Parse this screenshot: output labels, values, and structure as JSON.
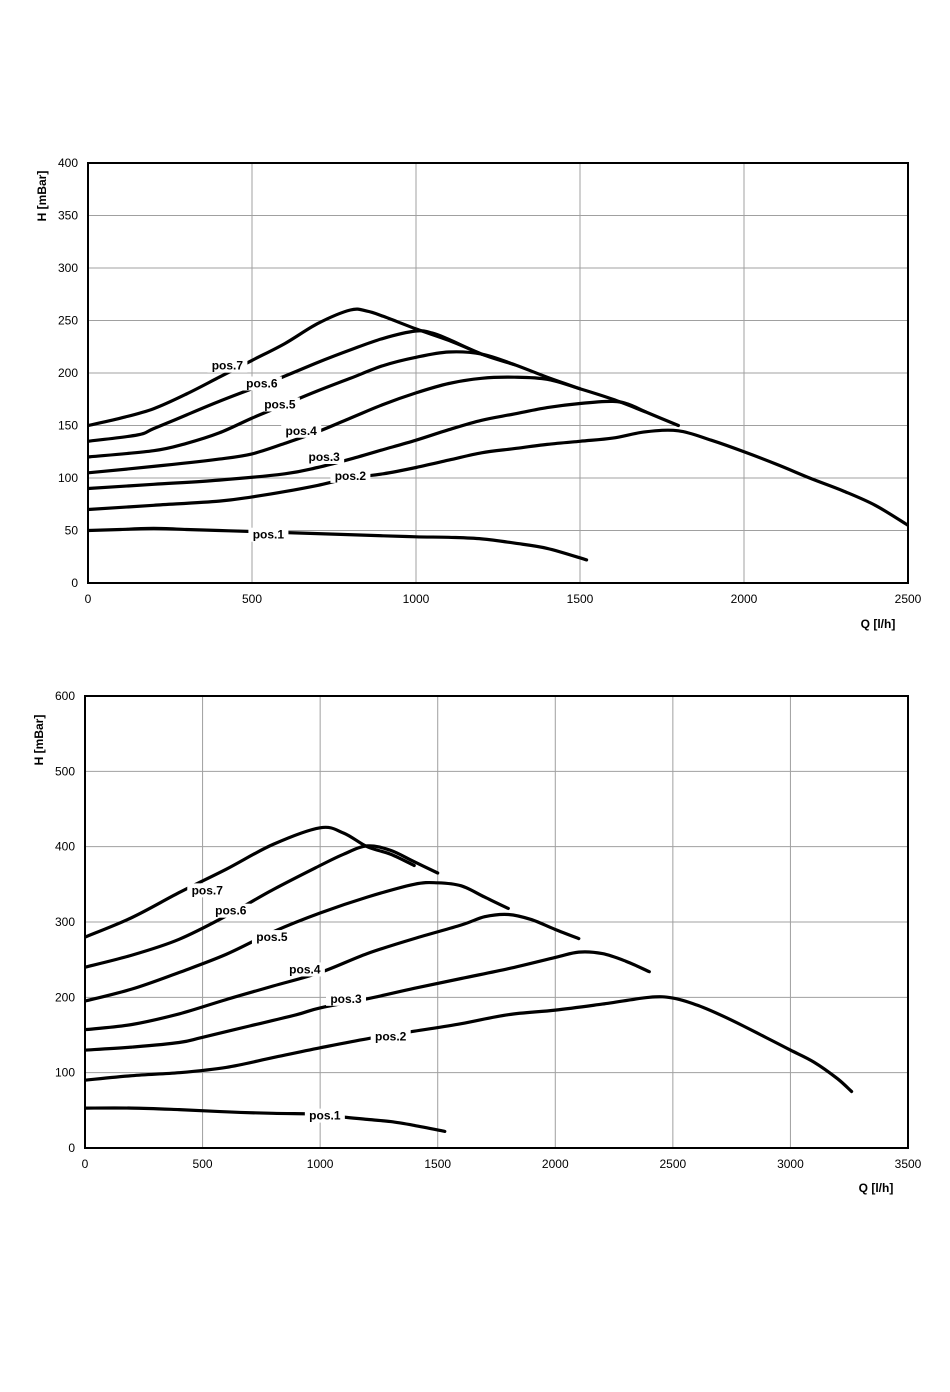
{
  "chart_data": [
    {
      "type": "line",
      "xlabel": "Q [l/h]",
      "ylabel": "H [mBar]",
      "xlim": [
        0,
        2500
      ],
      "ylim": [
        0,
        400
      ],
      "xticks": [
        "0",
        "500",
        "1000",
        "1500",
        "2000",
        "2500"
      ],
      "yticks": [
        "0",
        "50",
        "100",
        "150",
        "200",
        "250",
        "300",
        "350",
        "400"
      ],
      "grid": true,
      "series": [
        {
          "name": "pos.1",
          "label_at": [
            550,
            46
          ],
          "points": [
            [
              0,
              50
            ],
            [
              100,
              51
            ],
            [
              200,
              52
            ],
            [
              300,
              51
            ],
            [
              400,
              50
            ],
            [
              500,
              49
            ],
            [
              700,
              47
            ],
            [
              900,
              45
            ],
            [
              1000,
              44
            ],
            [
              1100,
              43.5
            ],
            [
              1200,
              42
            ],
            [
              1300,
              38
            ],
            [
              1400,
              33
            ],
            [
              1520,
              22
            ]
          ]
        },
        {
          "name": "pos.2",
          "label_at": [
            800,
            102
          ],
          "points": [
            [
              0,
              70
            ],
            [
              200,
              74
            ],
            [
              400,
              78
            ],
            [
              500,
              82
            ],
            [
              600,
              87
            ],
            [
              700,
              93
            ],
            [
              800,
              100
            ],
            [
              900,
              104
            ],
            [
              1000,
              110
            ],
            [
              1100,
              117
            ],
            [
              1200,
              124
            ],
            [
              1300,
              128
            ],
            [
              1400,
              132
            ],
            [
              1500,
              135
            ],
            [
              1600,
              138
            ],
            [
              1700,
              144
            ],
            [
              1800,
              145
            ],
            [
              1900,
              136
            ],
            [
              2000,
              125
            ],
            [
              2100,
              113
            ],
            [
              2200,
              100
            ],
            [
              2300,
              88
            ],
            [
              2400,
              74
            ],
            [
              2500,
              55
            ]
          ]
        },
        {
          "name": "pos.3",
          "label_at": [
            720,
            120
          ],
          "points": [
            [
              0,
              90
            ],
            [
              200,
              94
            ],
            [
              400,
              98
            ],
            [
              600,
              104
            ],
            [
              700,
              110
            ],
            [
              800,
              118
            ],
            [
              900,
              127
            ],
            [
              1000,
              136
            ],
            [
              1100,
              146
            ],
            [
              1200,
              155
            ],
            [
              1300,
              161
            ],
            [
              1400,
              167
            ],
            [
              1500,
              171
            ],
            [
              1600,
              173
            ],
            [
              1650,
              170
            ],
            [
              1700,
              163
            ],
            [
              1800,
              150
            ]
          ]
        },
        {
          "name": "pos.4",
          "label_at": [
            650,
            145
          ],
          "points": [
            [
              0,
              105
            ],
            [
              200,
              111
            ],
            [
              400,
              118
            ],
            [
              500,
              123
            ],
            [
              600,
              133
            ],
            [
              700,
              144
            ],
            [
              800,
              157
            ],
            [
              900,
              170
            ],
            [
              1000,
              181
            ],
            [
              1100,
              190
            ],
            [
              1200,
              195
            ],
            [
              1300,
              196
            ],
            [
              1400,
              194
            ],
            [
              1500,
              185
            ],
            [
              1600,
              175
            ],
            [
              1700,
              163
            ]
          ]
        },
        {
          "name": "pos.5",
          "label_at": [
            585,
            170
          ],
          "points": [
            [
              0,
              120
            ],
            [
              200,
              126
            ],
            [
              300,
              133
            ],
            [
              400,
              143
            ],
            [
              500,
              157
            ],
            [
              600,
              170
            ],
            [
              700,
              183
            ],
            [
              800,
              195
            ],
            [
              900,
              207
            ],
            [
              1000,
              215
            ],
            [
              1100,
              220
            ],
            [
              1200,
              218
            ],
            [
              1300,
              208
            ],
            [
              1400,
              196
            ],
            [
              1500,
              185
            ]
          ]
        },
        {
          "name": "pos.6",
          "label_at": [
            530,
            190
          ],
          "points": [
            [
              0,
              135
            ],
            [
              150,
              141
            ],
            [
              200,
              147
            ],
            [
              300,
              160
            ],
            [
              400,
              173
            ],
            [
              500,
              185
            ],
            [
              600,
              197
            ],
            [
              700,
              210
            ],
            [
              800,
              222
            ],
            [
              900,
              233
            ],
            [
              1000,
              240
            ],
            [
              1050,
              238
            ],
            [
              1100,
              232
            ],
            [
              1200,
              218
            ],
            [
              1300,
              208
            ]
          ]
        },
        {
          "name": "pos.7",
          "label_at": [
            425,
            207
          ],
          "points": [
            [
              0,
              150
            ],
            [
              100,
              157
            ],
            [
              200,
              166
            ],
            [
              300,
              180
            ],
            [
              400,
              196
            ],
            [
              500,
              212
            ],
            [
              600,
              228
            ],
            [
              700,
              247
            ],
            [
              800,
              260
            ],
            [
              850,
              259
            ],
            [
              900,
              254
            ],
            [
              1000,
              242
            ],
            [
              1100,
              231
            ],
            [
              1200,
              218
            ]
          ]
        }
      ]
    },
    {
      "type": "line",
      "xlabel": "Q [l/h]",
      "ylabel": "H [mBar]",
      "xlim": [
        0,
        3500
      ],
      "ylim": [
        0,
        600
      ],
      "xticks": [
        "0",
        "500",
        "1000",
        "1500",
        "2000",
        "2500",
        "3000",
        "3500"
      ],
      "yticks": [
        "0",
        "100",
        "200",
        "300",
        "400",
        "500",
        "600"
      ],
      "grid": true,
      "series": [
        {
          "name": "pos.1",
          "label_at": [
            1020,
            43
          ],
          "points": [
            [
              0,
              53
            ],
            [
              200,
              53
            ],
            [
              400,
              51
            ],
            [
              600,
              48
            ],
            [
              800,
              46
            ],
            [
              1000,
              45
            ],
            [
              1100,
              41
            ],
            [
              1200,
              38
            ],
            [
              1300,
              35
            ],
            [
              1400,
              30
            ],
            [
              1530,
              22
            ]
          ]
        },
        {
          "name": "pos.2",
          "label_at": [
            1300,
            148
          ],
          "points": [
            [
              0,
              90
            ],
            [
              200,
              96
            ],
            [
              400,
              100
            ],
            [
              600,
              107
            ],
            [
              800,
              120
            ],
            [
              1000,
              133
            ],
            [
              1200,
              145
            ],
            [
              1400,
              155
            ],
            [
              1600,
              165
            ],
            [
              1800,
              177
            ],
            [
              2000,
              183
            ],
            [
              2200,
              191
            ],
            [
              2400,
              200
            ],
            [
              2500,
              199
            ],
            [
              2600,
              190
            ],
            [
              2700,
              177
            ],
            [
              2800,
              162
            ],
            [
              2900,
              146
            ],
            [
              3000,
              130
            ],
            [
              3100,
              114
            ],
            [
              3200,
              92
            ],
            [
              3260,
              75
            ]
          ]
        },
        {
          "name": "pos.3",
          "label_at": [
            1110,
            198
          ],
          "points": [
            [
              0,
              130
            ],
            [
              200,
              134
            ],
            [
              400,
              140
            ],
            [
              500,
              147
            ],
            [
              700,
              162
            ],
            [
              900,
              177
            ],
            [
              1000,
              186
            ],
            [
              1200,
              198
            ],
            [
              1400,
              212
            ],
            [
              1600,
              225
            ],
            [
              1800,
              238
            ],
            [
              2000,
              253
            ],
            [
              2100,
              260
            ],
            [
              2200,
              258
            ],
            [
              2300,
              248
            ],
            [
              2400,
              234
            ]
          ]
        },
        {
          "name": "pos.4",
          "label_at": [
            935,
            237
          ],
          "points": [
            [
              0,
              157
            ],
            [
              200,
              164
            ],
            [
              400,
              178
            ],
            [
              600,
              197
            ],
            [
              800,
              215
            ],
            [
              1000,
              233
            ],
            [
              1200,
              258
            ],
            [
              1400,
              278
            ],
            [
              1600,
              296
            ],
            [
              1700,
              307
            ],
            [
              1800,
              310
            ],
            [
              1900,
              303
            ],
            [
              2000,
              290
            ],
            [
              2100,
              278
            ]
          ]
        },
        {
          "name": "pos.5",
          "label_at": [
            795,
            280
          ],
          "points": [
            [
              0,
              195
            ],
            [
              200,
              211
            ],
            [
              400,
              233
            ],
            [
              600,
              257
            ],
            [
              800,
              287
            ],
            [
              1000,
              312
            ],
            [
              1200,
              333
            ],
            [
              1400,
              350
            ],
            [
              1500,
              352
            ],
            [
              1600,
              348
            ],
            [
              1700,
              333
            ],
            [
              1800,
              318
            ]
          ]
        },
        {
          "name": "pos.6",
          "label_at": [
            620,
            315
          ],
          "points": [
            [
              0,
              240
            ],
            [
              200,
              256
            ],
            [
              400,
              277
            ],
            [
              600,
              308
            ],
            [
              800,
              343
            ],
            [
              1000,
              375
            ],
            [
              1100,
              390
            ],
            [
              1200,
              401
            ],
            [
              1300,
              395
            ],
            [
              1400,
              380
            ],
            [
              1500,
              365
            ]
          ]
        },
        {
          "name": "pos.7",
          "label_at": [
            520,
            342
          ],
          "points": [
            [
              0,
              280
            ],
            [
              200,
              306
            ],
            [
              400,
              339
            ],
            [
              600,
              370
            ],
            [
              800,
              403
            ],
            [
              1000,
              425
            ],
            [
              1100,
              418
            ],
            [
              1200,
              400
            ],
            [
              1300,
              390
            ],
            [
              1400,
              375
            ]
          ]
        }
      ]
    }
  ]
}
